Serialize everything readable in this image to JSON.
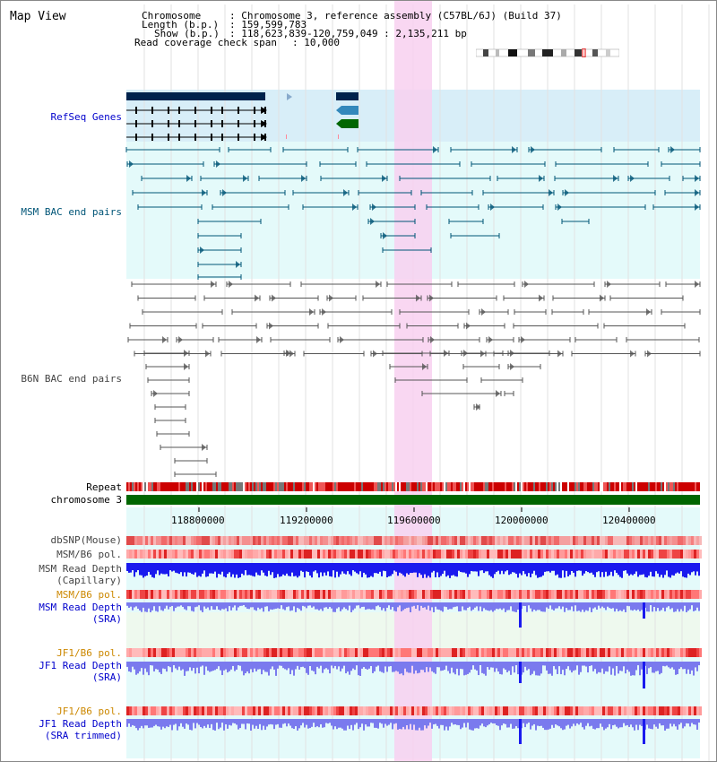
{
  "title": "Map View",
  "header": {
    "chromosome_key": "Chromosome",
    "chromosome_val": ": Chromosome 3, reference assembly (C57BL/6J) (Build 37)",
    "length_key": "Length (b.p.)",
    "length_val": ": 159,599,783",
    "show_key": "Show (b.p.)",
    "show_val": ": 118,623,839-120,759,049 : 2,135,211 bp",
    "coverage_key": "Read coverage check span",
    "coverage_val": ": 10,000"
  },
  "tracks": {
    "refseq": "RefSeq Genes",
    "msm_bac": "MSM BAC end pairs",
    "b6n_bac": "B6N BAC end pairs",
    "repeat": "Repeat",
    "chromosome": "chromosome 3",
    "dbsnp": "dbSNP(Mouse)",
    "msm_b6_pol1": "MSM/B6 pol.",
    "msm_depth_cap_1": "MSM Read Depth",
    "msm_depth_cap_2": "(Capillary)",
    "msm_b6_pol2": "MSM/B6 pol.",
    "msm_depth_sra_1": "MSM Read Depth",
    "msm_depth_sra_2": "(SRA)",
    "jf1_b6_pol1": "JF1/B6 pol.",
    "jf1_depth_sra_1": "JF1 Read Depth",
    "jf1_depth_sra_2": "(SRA)",
    "jf1_b6_pol2": "JF1/B6 pol.",
    "jf1_depth_trim_1": "JF1 Read Depth",
    "jf1_depth_trim_2": "(SRA trimmed)"
  },
  "axis": {
    "ticks": [
      "118800000",
      "119200000",
      "119600000",
      "120000000",
      "120400000"
    ]
  },
  "colors": {
    "refseq_bg": "#d8eef8",
    "bac_bg": "#e4fafa",
    "highlight": "#f8d0f0",
    "chromosome_bar": "#006600",
    "msm_line": "#005577",
    "b6n_line": "#555555",
    "depth_dark": "#1a1aee",
    "depth_light": "#7a7aee"
  }
}
